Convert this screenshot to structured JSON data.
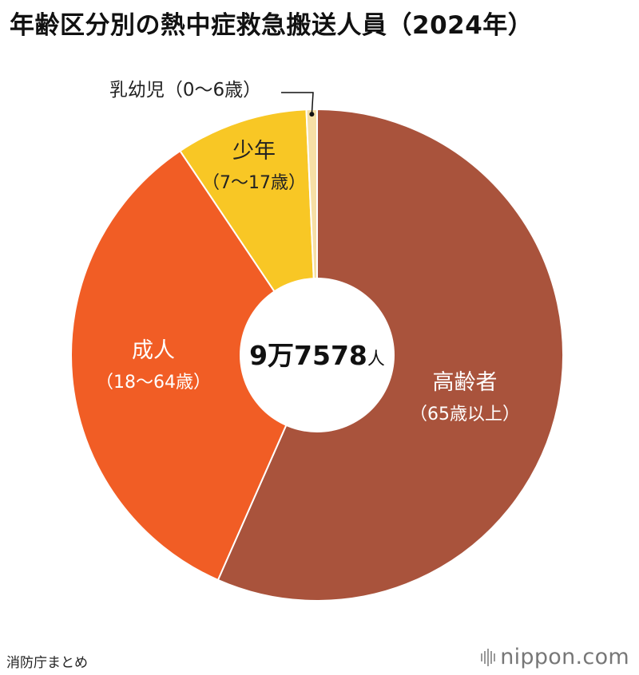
{
  "title": "年齢区分別の熱中症救急搬送人員（2024年）",
  "source": "消防庁まとめ",
  "brand": {
    "name": "nippon",
    "suffix": ".com"
  },
  "chart_data": {
    "type": "pie",
    "title": "年齢区分別の熱中症救急搬送人員（2024年）",
    "center_label": {
      "number": "9万7578",
      "unit": "人"
    },
    "slices": [
      {
        "name": "高齢者",
        "sub": "（65歳以上）",
        "value": 0.566,
        "color": "#a9533c"
      },
      {
        "name": "成人",
        "sub": "（18〜64歳）",
        "value": 0.34,
        "color": "#f15d25"
      },
      {
        "name": "少年",
        "sub": "（7〜17歳）",
        "value": 0.087,
        "color": "#f8c725"
      },
      {
        "name": "乳幼児",
        "sub": "（0〜6歳）",
        "value": 0.007,
        "color": "#f6dfa5"
      }
    ]
  }
}
